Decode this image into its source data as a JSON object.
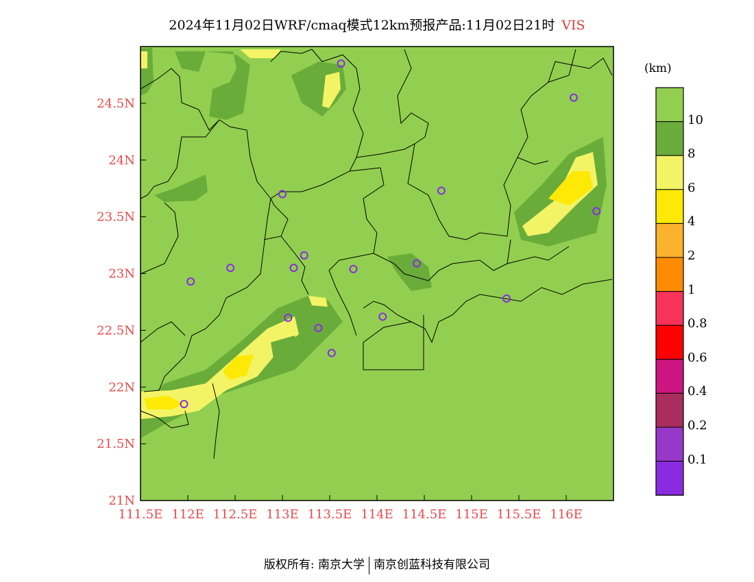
{
  "title": {
    "main": "2024年11月02日WRF/cmaq模式12km预报产品:11月02日21时",
    "variable": "VIS"
  },
  "axes": {
    "x_ticks": [
      "111.5E",
      "112E",
      "112.5E",
      "113E",
      "113.5E",
      "114E",
      "114.5E",
      "115E",
      "115.5E",
      "116E"
    ],
    "y_ticks": [
      "21N",
      "21.5N",
      "22N",
      "22.5N",
      "23N",
      "23.5N",
      "24N",
      "24.5N"
    ],
    "lon_range": [
      111.5,
      116.5
    ],
    "lat_range": [
      21,
      25
    ],
    "tick_color": "#e8474a"
  },
  "colorbar": {
    "unit": "(km)",
    "levels": [
      "10",
      "8",
      "6",
      "4",
      "2",
      "1",
      "0.8",
      "0.6",
      "0.4",
      "0.2",
      "0.1"
    ],
    "colors": [
      "#92cf50",
      "#6aac3a",
      "#f2f466",
      "#fde905",
      "#fbb22c",
      "#ff8c00",
      "#f7335a",
      "#ff0000",
      "#cd1480",
      "#a92d5e",
      "#9838c8",
      "#8a2be2"
    ]
  },
  "stations": [
    {
      "lon": 113.62,
      "lat": 24.85
    },
    {
      "lon": 116.08,
      "lat": 24.55
    },
    {
      "lon": 113.0,
      "lat": 23.7
    },
    {
      "lon": 114.68,
      "lat": 23.73
    },
    {
      "lon": 116.32,
      "lat": 23.55
    },
    {
      "lon": 113.23,
      "lat": 23.16
    },
    {
      "lon": 112.45,
      "lat": 23.05
    },
    {
      "lon": 113.12,
      "lat": 23.05
    },
    {
      "lon": 113.75,
      "lat": 23.04
    },
    {
      "lon": 114.42,
      "lat": 23.09
    },
    {
      "lon": 112.03,
      "lat": 22.93
    },
    {
      "lon": 115.37,
      "lat": 22.78
    },
    {
      "lon": 113.06,
      "lat": 22.61
    },
    {
      "lon": 114.06,
      "lat": 22.62
    },
    {
      "lon": 113.38,
      "lat": 22.52
    },
    {
      "lon": 113.52,
      "lat": 22.3
    },
    {
      "lon": 111.96,
      "lat": 21.85
    }
  ],
  "footer": {
    "left": "版权所有: 南京大学",
    "right": "南京创蓝科技有限公司"
  }
}
